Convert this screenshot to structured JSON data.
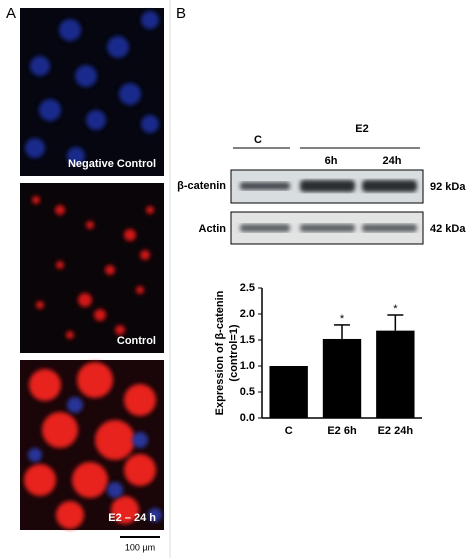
{
  "panel_a": {
    "label": "A",
    "captions": [
      "Negative Control",
      "Control",
      "E2 – 24 h"
    ],
    "scale_bar": "100 µm"
  },
  "panel_b": {
    "label": "B",
    "blot": {
      "groups": [
        "C",
        "E2"
      ],
      "times": [
        "6h",
        "24h"
      ],
      "rows": [
        {
          "protein": "β-catenin",
          "size": "92 kDa"
        },
        {
          "protein": "Actin",
          "size": "42 kDa"
        }
      ]
    }
  },
  "chart_data": {
    "type": "bar",
    "ylabel": [
      "Expression of  β-catenin",
      "(control=1)"
    ],
    "categories": [
      "C",
      "E2 6h",
      "E2 24h"
    ],
    "values": [
      1.0,
      1.52,
      1.68
    ],
    "errors": [
      0,
      0.27,
      0.3
    ],
    "color": "#000000",
    "ylim": [
      0,
      2.5
    ],
    "yticks": [
      {
        "value": 0,
        "label": "0.0"
      },
      0.5,
      {
        "value": 1,
        "label": "1.0"
      },
      1.5,
      {
        "value": 2,
        "label": "2.0"
      },
      2.5
    ],
    "annotations": [
      {
        "text": "*",
        "category": "E2 6h"
      },
      {
        "text": "*",
        "category": "E2 24h"
      }
    ]
  }
}
